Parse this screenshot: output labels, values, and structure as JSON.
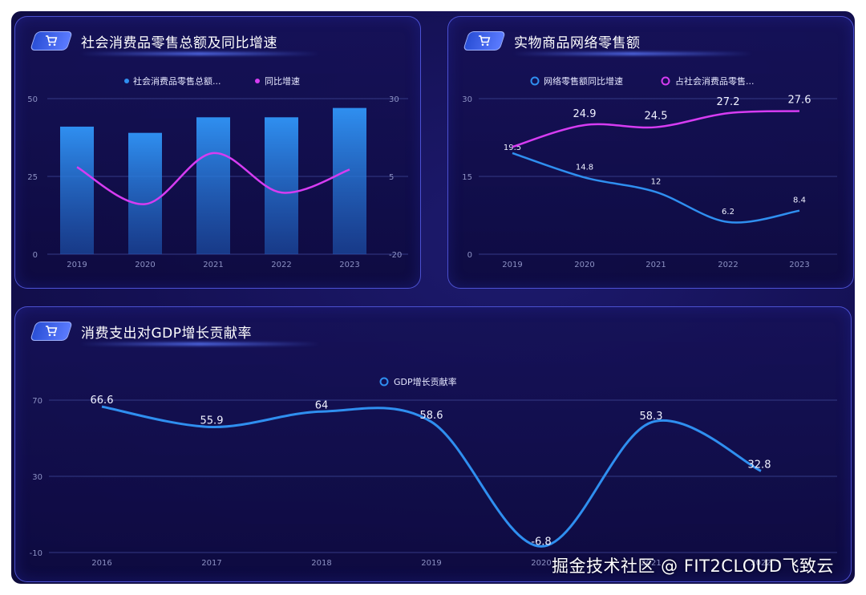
{
  "watermark": "掘金技术社区 @ FIT2CLOUD飞致云",
  "icons": {
    "panel_icon": "shopping-cart-icon"
  },
  "colors": {
    "blue": "#2f8ff0",
    "magenta": "#d63cf2",
    "axis_text": "#8d92c4",
    "grid": "#343a86"
  },
  "panels": [
    {
      "title": "社会消费品零售总额及同比增速"
    },
    {
      "title": "实物商品网络零售额"
    },
    {
      "title": "消费支出对GDP增长贡献率"
    }
  ],
  "chart_data": [
    {
      "type": "bar",
      "categories": [
        "2019",
        "2020",
        "2021",
        "2022",
        "2023"
      ],
      "series": [
        {
          "name": "社会消费品零售总额...",
          "type": "bar",
          "axis": "left",
          "values": [
            41,
            39,
            44,
            44,
            47
          ]
        },
        {
          "name": "同比增速",
          "type": "line",
          "axis": "right",
          "values": [
            8,
            -3.9,
            12.5,
            -0.2,
            7.2
          ]
        }
      ],
      "y_left": {
        "ticks": [
          "0",
          "25",
          "50"
        ],
        "range": [
          0,
          50
        ]
      },
      "y_right": {
        "ticks": [
          "-20",
          "5",
          "30"
        ],
        "range": [
          -20,
          30
        ]
      },
      "grid": true,
      "legend_position": "top-center"
    },
    {
      "type": "line",
      "categories": [
        "2019",
        "2020",
        "2021",
        "2022",
        "2023"
      ],
      "series": [
        {
          "name": "网络零售额同比增速",
          "values": [
            19.5,
            14.8,
            12,
            6.2,
            8.4
          ],
          "labels": [
            "19.5",
            "14.8",
            "12",
            "6.2",
            "8.4"
          ]
        },
        {
          "name": "占社会消费品零售...",
          "values": [
            20.7,
            24.9,
            24.5,
            27.2,
            27.6
          ],
          "labels": [
            "",
            "24.9",
            "24.5",
            "27.2",
            "27.6"
          ]
        }
      ],
      "y": {
        "ticks": [
          "0",
          "15",
          "30"
        ],
        "range": [
          0,
          30
        ]
      },
      "grid": true,
      "legend_position": "top-center"
    },
    {
      "type": "line",
      "categories": [
        "2016",
        "2017",
        "2018",
        "2019",
        "2020",
        "2021",
        "2022"
      ],
      "series": [
        {
          "name": "GDP增长贡献率",
          "values": [
            66.6,
            55.9,
            64,
            58.6,
            -6.8,
            58.3,
            32.8
          ],
          "labels": [
            "66.6",
            "55.9",
            "64",
            "58.6",
            "-6.8",
            "58.3",
            "32.8"
          ]
        }
      ],
      "y": {
        "ticks": [
          "-10",
          "30",
          "70"
        ],
        "range": [
          -10,
          70
        ]
      },
      "grid": true,
      "legend_position": "top-center"
    }
  ]
}
